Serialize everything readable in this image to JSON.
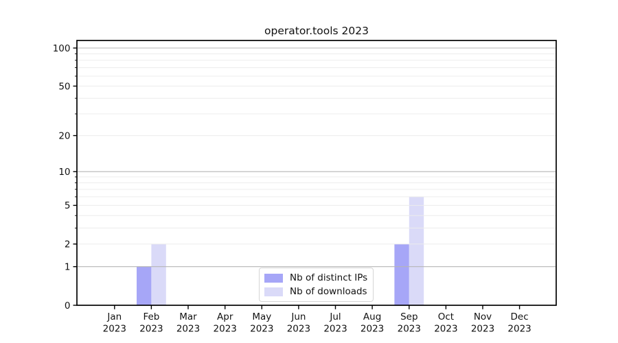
{
  "chart_data": {
    "type": "bar",
    "title": "operator.tools 2023",
    "categories": [
      "Jan",
      "Feb",
      "Mar",
      "Apr",
      "May",
      "Jun",
      "Jul",
      "Aug",
      "Sep",
      "Oct",
      "Nov",
      "Dec"
    ],
    "x_tick_year": "2023",
    "series": [
      {
        "name": "Nb of distinct IPs",
        "color": "#a6a6f7",
        "values": [
          0,
          1,
          0,
          0,
          0,
          0,
          0,
          0,
          2,
          0,
          0,
          0
        ]
      },
      {
        "name": "Nb of downloads",
        "color": "#dadaf8",
        "values": [
          0,
          2,
          0,
          0,
          0,
          0,
          0,
          0,
          6,
          0,
          0,
          0
        ]
      }
    ],
    "y_axis": {
      "scale": "log10(1+v)",
      "tick_labels": [
        0,
        1,
        2,
        5,
        10,
        20,
        50,
        100
      ],
      "major_gridlines": [
        1,
        10,
        100
      ],
      "minor_gridlines": [
        2,
        3,
        4,
        5,
        6,
        7,
        8,
        9,
        20,
        30,
        40,
        50,
        60,
        70,
        80,
        90
      ],
      "ylim": [
        0,
        115
      ]
    },
    "legend": {
      "position": "lower center"
    },
    "colors": {
      "axis": "#000000",
      "text": "#111111",
      "major_grid": "#b5b5b5",
      "minor_grid": "#ececec",
      "background": "#ffffff"
    }
  }
}
